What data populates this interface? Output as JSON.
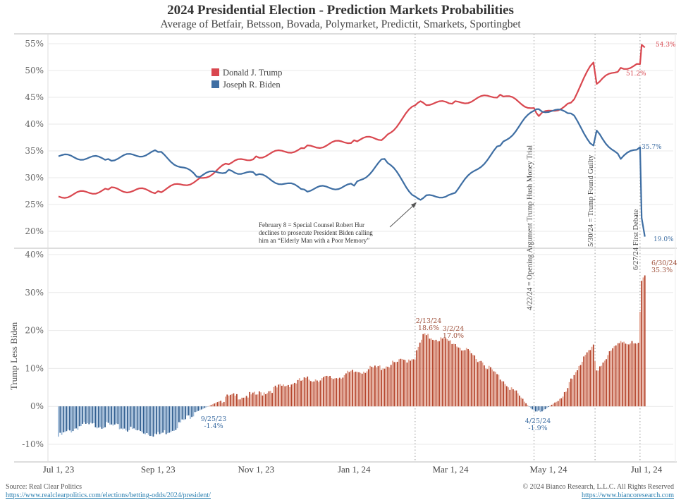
{
  "header": {
    "title": "2024 Presidential Election - Prediction Markets Probabilities",
    "subtitle": "Average of Betfair, Betsson, Bovada, Polymarket, Predictit, Smarkets, Sportingbet"
  },
  "footer": {
    "source": "Source: Real Clear Politics",
    "source_url": "https://www.realclearpolitics.com/elections/betting-odds/2024/president/",
    "copyright": "© 2024 Bianco Research, L.L.C. All Rights Reserved",
    "site_url": "https://www.biancoresearch.com"
  },
  "colors": {
    "trump": "#d9474f",
    "biden": "#3e6ea3",
    "bar_pos": "#b5452c",
    "bar_pos_light": "#e3a390",
    "bar_neg": "#2f5d8f",
    "bar_neg_light": "#9cb9d8",
    "grid": "#e9e9e9",
    "event_line": "#999999"
  },
  "chart_data": [
    {
      "type": "line",
      "panel": "top",
      "ylim": [
        18,
        56
      ],
      "yticks": [
        "55%",
        "50%",
        "45%",
        "40%",
        "35%",
        "30%",
        "25%",
        "20%"
      ],
      "ytick_values": [
        55,
        50,
        45,
        40,
        35,
        30,
        25,
        20
      ],
      "grid": true,
      "legend": {
        "placement": "top-left",
        "entries": [
          "Donald J. Trump",
          "Joseph R. Biden"
        ]
      },
      "x_dates": [
        "2023-07-01",
        "2023-08-01",
        "2023-09-01",
        "2023-09-25",
        "2023-10-15",
        "2023-11-01",
        "2023-12-01",
        "2024-01-01",
        "2024-01-20",
        "2024-02-08",
        "2024-02-13",
        "2024-03-02",
        "2024-04-01",
        "2024-04-22",
        "2024-04-25",
        "2024-05-15",
        "2024-05-29",
        "2024-05-31",
        "2024-06-15",
        "2024-06-27",
        "2024-06-28",
        "2024-06-30"
      ],
      "series": [
        {
          "name": "Donald J. Trump",
          "values": [
            26.5,
            27.8,
            27.5,
            29.5,
            32.5,
            34.0,
            35.5,
            37.0,
            37.5,
            43.5,
            44.0,
            43.8,
            45.5,
            43.0,
            41.5,
            44.0,
            51.5,
            47.5,
            50.5,
            51.2,
            54.8,
            54.3
          ]
        },
        {
          "name": "Joseph R. Biden",
          "values": [
            34.0,
            33.5,
            34.8,
            30.2,
            31.5,
            30.5,
            27.8,
            28.5,
            33.5,
            26.5,
            26.2,
            27.0,
            36.0,
            42.5,
            42.8,
            42.0,
            36.0,
            38.8,
            33.5,
            35.7,
            22.5,
            19.0
          ]
        }
      ],
      "annotations": [
        {
          "text": "54.3%",
          "series": "Donald J. Trump"
        },
        {
          "text": "51.2%",
          "series": "Donald J. Trump"
        },
        {
          "text": "35.7%",
          "series": "Joseph R. Biden"
        },
        {
          "text": "19.0%",
          "series": "Joseph R. Biden"
        },
        {
          "text": "February 8 = Special Counsel Robert Hur declines to prosecute President Biden calling him an “Elderly Man with a Poor Memory”",
          "lines": [
            "February 8 = Special Counsel Robert Hur",
            "declines to prosecute President Biden calling",
            "him an “Elderly Man with a Poor Memory”"
          ]
        }
      ]
    },
    {
      "type": "bar",
      "panel": "bottom",
      "ylabel": "Trump Less Biden",
      "ylim": [
        -12,
        41
      ],
      "yticks": [
        "40%",
        "30%",
        "20%",
        "10%",
        "0%",
        "-10%"
      ],
      "ytick_values": [
        40,
        30,
        20,
        10,
        0,
        -10
      ],
      "grid": true,
      "x_dates": [
        "2023-07-01",
        "2023-07-15",
        "2023-08-01",
        "2023-08-20",
        "2023-09-01",
        "2023-09-10",
        "2023-09-24",
        "2023-09-25",
        "2023-10-15",
        "2023-11-01",
        "2023-11-15",
        "2023-12-01",
        "2023-12-20",
        "2024-01-01",
        "2024-01-20",
        "2024-02-08",
        "2024-02-13",
        "2024-03-02",
        "2024-03-20",
        "2024-04-05",
        "2024-04-20",
        "2024-04-25",
        "2024-05-05",
        "2024-05-10",
        "2024-05-20",
        "2024-05-29",
        "2024-05-31",
        "2024-06-15",
        "2024-06-26",
        "2024-06-28",
        "2024-06-30"
      ],
      "values": [
        -8.0,
        -5.0,
        -5.0,
        -6.5,
        -7.5,
        -6.0,
        -1.5,
        -1.4,
        2.5,
        3.0,
        5.0,
        7.0,
        7.5,
        9.0,
        10.5,
        13.0,
        18.6,
        17.0,
        12.0,
        6.0,
        -0.5,
        -1.9,
        1.0,
        2.0,
        11.0,
        15.5,
        9.5,
        17.5,
        16.0,
        33.0,
        35.3
      ],
      "annotations": [
        {
          "date_label": "9/25/23",
          "value_label": "-1.4%"
        },
        {
          "date_label": "2/13/24",
          "value_label": "18.6%"
        },
        {
          "date_label": "3/2/24",
          "value_label": "17.0%"
        },
        {
          "date_label": "4/25/24",
          "value_label": "-1.9%"
        },
        {
          "date_label": "6/30/24",
          "value_label": "35.3%"
        }
      ]
    }
  ],
  "xaxis": {
    "ticks": [
      "Jul 1, 23",
      "Sep 1, 23",
      "Nov 1, 23",
      "Jan 1, 24",
      "Mar 1, 24",
      "May 1, 24",
      "Jul 1, 24"
    ],
    "tick_dates": [
      "2023-07-01",
      "2023-09-01",
      "2023-11-01",
      "2024-01-01",
      "2024-03-01",
      "2024-05-01",
      "2024-07-01"
    ]
  },
  "events": [
    {
      "date": "2024-02-08",
      "label": ""
    },
    {
      "date": "2024-04-22",
      "label": "4/22/24 = Opening Argument Trump Hush Money Trial"
    },
    {
      "date": "2024-05-30",
      "label": "5/30/24 = Trump Found Guilty"
    },
    {
      "date": "2024-06-27",
      "label": "6/27/24 First Debate"
    }
  ]
}
